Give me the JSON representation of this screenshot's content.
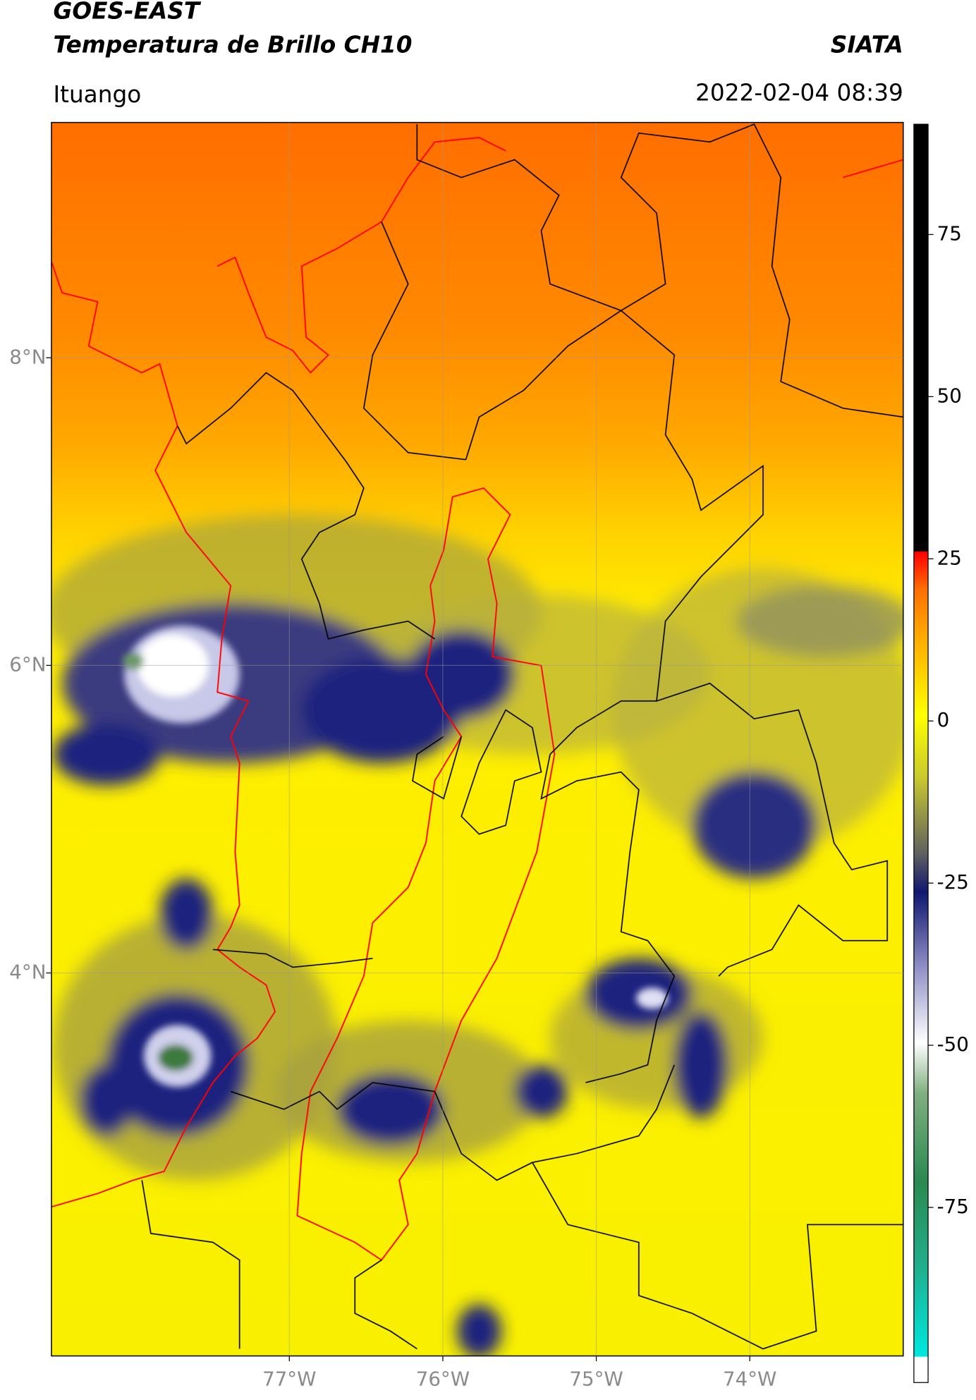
{
  "map": {
    "title": "GOES-EAST",
    "subtitle": "Temperatura de Brillo CH10",
    "source": "SIATA",
    "location": "Ituango",
    "datetime": "2022-02-04 08:39",
    "xlim": [
      -78.55,
      -73.0
    ],
    "ylim": [
      1.51,
      9.53
    ],
    "xticks": [
      {
        "value": -77,
        "label": "77°W"
      },
      {
        "value": -76,
        "label": "76°W"
      },
      {
        "value": -75,
        "label": "75°W"
      },
      {
        "value": -74,
        "label": "74°W"
      }
    ],
    "yticks": [
      {
        "value": 8,
        "label": "8°N"
      },
      {
        "value": 6,
        "label": "6°N"
      },
      {
        "value": 4,
        "label": "4°N"
      }
    ],
    "grid": true,
    "colorbar": {
      "lim": [
        -102,
        92
      ],
      "ticks": [
        75,
        50,
        25,
        0,
        -25,
        -50,
        -75
      ]
    }
  }
}
